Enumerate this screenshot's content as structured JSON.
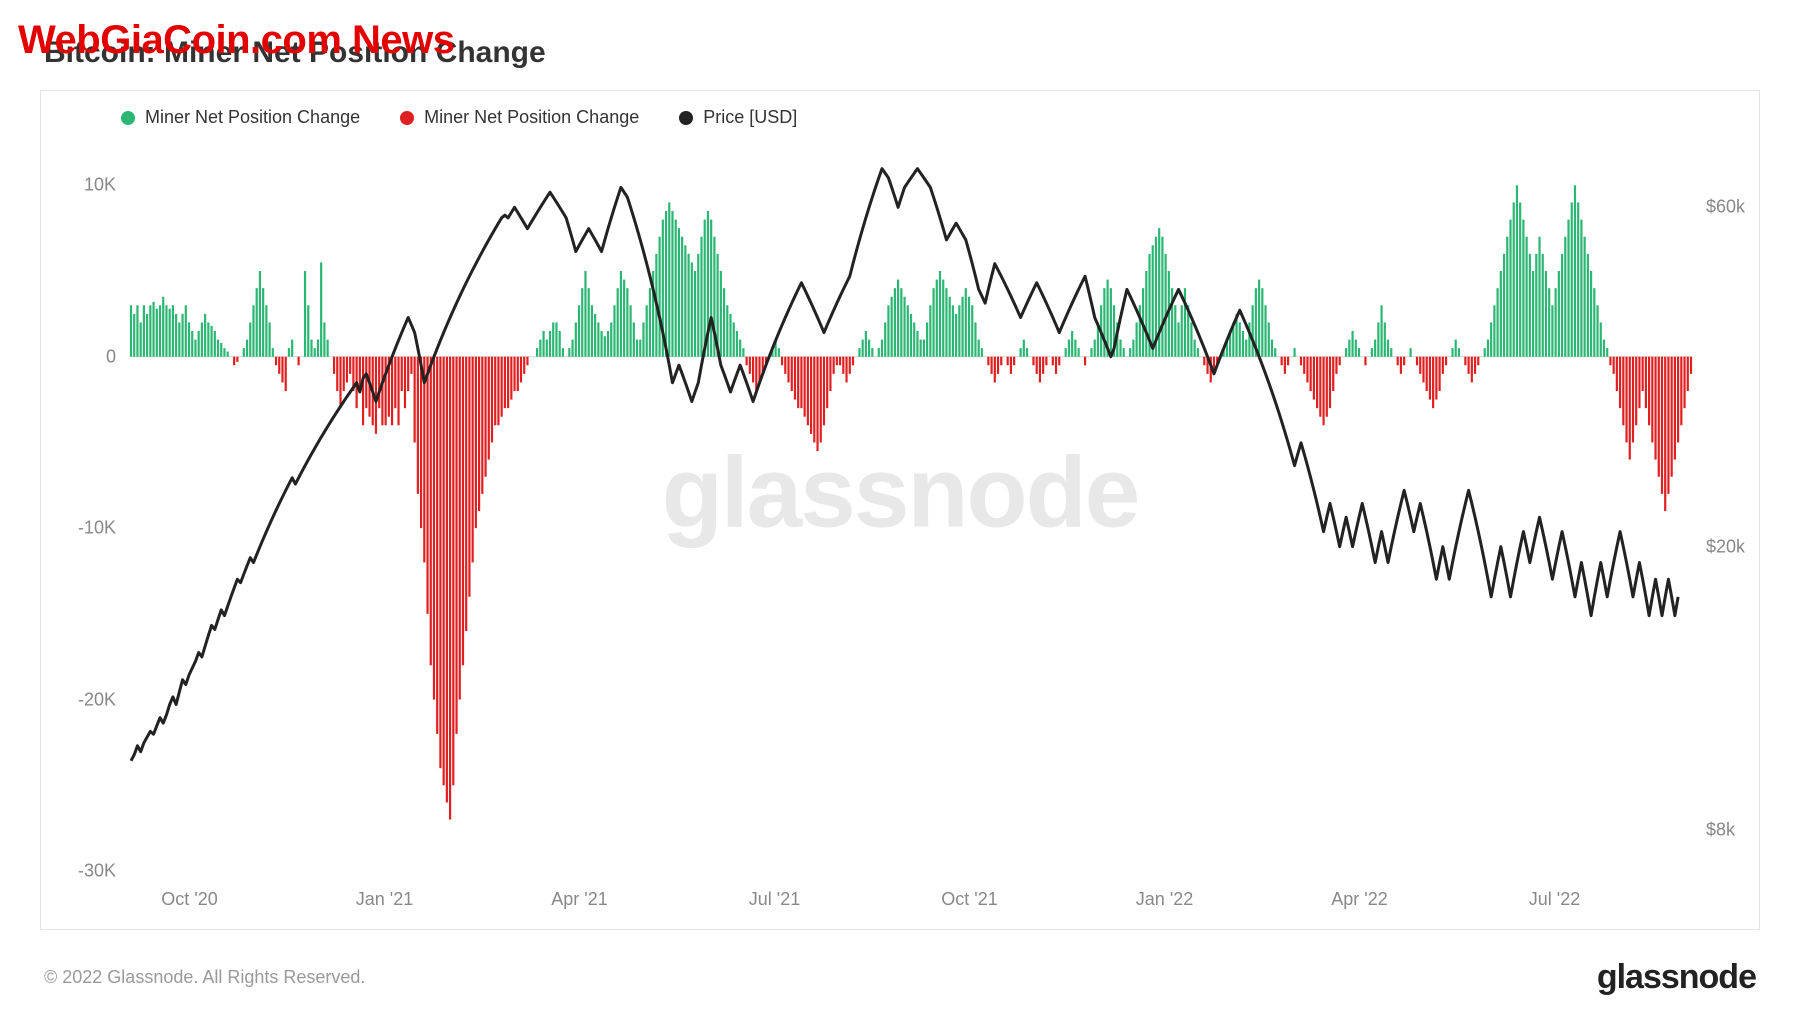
{
  "overlay_text": "WebGiaCoin.com News",
  "title": "Bitcoin: Miner Net Position Change",
  "legend": {
    "pos": "Miner Net Position Change",
    "neg": "Miner Net Position Change",
    "price": "Price [USD]",
    "pos_color": "#2bb673",
    "neg_color": "#e02020",
    "price_color": "#222222"
  },
  "watermark": "glassnode",
  "copyright": "© 2022 Glassnode. All Rights Reserved.",
  "brand": "glassnode",
  "chart": {
    "type": "combo-bar-line",
    "background_color": "#ffffff",
    "border_color": "#e5e5e5",
    "zero_line_color": "#d0d0d0",
    "left_axis": {
      "label_color": "#888888",
      "fontsize": 18,
      "ticks": [
        10,
        0,
        -10,
        -20,
        -30
      ],
      "tick_labels": [
        "10K",
        "0",
        "-10K",
        "-20K",
        "-30K"
      ],
      "ylim": [
        -30,
        12
      ]
    },
    "right_axis": {
      "label_color": "#888888",
      "fontsize": 18,
      "ticks": [
        60,
        20,
        8
      ],
      "tick_labels": [
        "$60k",
        "$20k",
        "$8k"
      ],
      "scale": "log",
      "ylim": [
        7,
        72
      ]
    },
    "x_axis": {
      "labels": [
        "Oct '20",
        "Jan '21",
        "Apr '21",
        "Jul '21",
        "Oct '21",
        "Jan '22",
        "Apr '22",
        "Jul '22"
      ],
      "label_color": "#888888",
      "fontsize": 18,
      "range": [
        0,
        730
      ]
    },
    "bars_pos_color": "#2bb673",
    "bars_neg_color": "#e02020",
    "bar_width": 2.2,
    "line_color": "#222222",
    "line_width": 3,
    "bars": [
      3,
      2.5,
      3,
      2,
      3,
      2.5,
      3,
      3.2,
      2.8,
      3,
      3.5,
      3,
      2.8,
      3,
      2.5,
      2,
      2.5,
      3,
      2,
      1.5,
      1,
      1.5,
      2,
      2.5,
      2,
      1.8,
      1.5,
      1,
      0.8,
      0.5,
      0.3,
      0,
      -0.5,
      -0.3,
      0,
      0.5,
      1,
      2,
      3,
      4,
      5,
      4,
      3,
      2,
      0.5,
      -0.5,
      -1,
      -1.5,
      -2,
      0.5,
      1,
      0,
      -0.5,
      0,
      5,
      3,
      1,
      0.5,
      1,
      5.5,
      2,
      1,
      0,
      -1,
      -2,
      -3,
      -2,
      -1.5,
      -1,
      -2,
      -3,
      -2,
      -4,
      -3,
      -3.5,
      -4,
      -4.5,
      -3,
      -4,
      -4,
      -3.5,
      -4,
      -3,
      -4,
      -2,
      -3,
      -2,
      -1,
      -5,
      -8,
      -10,
      -12,
      -15,
      -18,
      -20,
      -22,
      -24,
      -25,
      -26,
      -27,
      -25,
      -22,
      -20,
      -18,
      -16,
      -14,
      -12,
      -10,
      -9,
      -8,
      -7,
      -6,
      -5,
      -4,
      -4,
      -3.5,
      -3,
      -3,
      -2.5,
      -2,
      -2,
      -1.5,
      -1,
      -0.5,
      0,
      0,
      0.5,
      1,
      1.5,
      1,
      1.5,
      2,
      2,
      1.5,
      0.5,
      0,
      0.5,
      1,
      2,
      3,
      4,
      5,
      4,
      3,
      2.5,
      2,
      1.5,
      1.2,
      1.5,
      2,
      3,
      4,
      5,
      4.5,
      4,
      3,
      2,
      1,
      1,
      2,
      3,
      4,
      5,
      6,
      7,
      8,
      8.5,
      9,
      8.5,
      8,
      7.5,
      7,
      6.5,
      6,
      5.5,
      5,
      6,
      7,
      8,
      8.5,
      8,
      7,
      6,
      5,
      4,
      3,
      2.5,
      2,
      1.5,
      1,
      0.5,
      -0.5,
      -1,
      -1.5,
      -2,
      -1.5,
      -1,
      -0.5,
      0,
      0.5,
      1,
      0.5,
      -0.5,
      -1,
      -1.5,
      -2,
      -2.5,
      -3,
      -3,
      -3.5,
      -4,
      -4.5,
      -5,
      -5.5,
      -5,
      -4,
      -3,
      -2,
      -1,
      -0.5,
      -0.5,
      -1,
      -1.5,
      -1,
      -0.5,
      0,
      0.5,
      1,
      1.5,
      1,
      0.5,
      0,
      0.5,
      1,
      2,
      3,
      3.5,
      4,
      4.5,
      4,
      3.5,
      3,
      2.5,
      2,
      1.5,
      1,
      1,
      2,
      3,
      4,
      4.5,
      5,
      4.5,
      4,
      3.5,
      3,
      2.5,
      3,
      3.5,
      4,
      3.5,
      3,
      2,
      1,
      0.5,
      0,
      -0.5,
      -1,
      -1.5,
      -1,
      -0.5,
      0,
      -0.5,
      -1,
      -0.5,
      0,
      0.5,
      1,
      0.5,
      0,
      -0.5,
      -1,
      -1.5,
      -1,
      -0.5,
      0,
      -0.5,
      -1,
      -0.5,
      0,
      0.5,
      1,
      1.5,
      1,
      0.5,
      0,
      -0.5,
      0,
      0.5,
      1,
      2,
      3,
      4,
      4.5,
      4,
      3,
      2,
      1,
      0.5,
      0,
      0.5,
      1,
      2,
      3,
      4,
      5,
      6,
      6.5,
      7,
      7.5,
      7,
      6,
      5,
      4,
      3,
      2,
      3,
      4,
      3,
      2,
      1,
      0.5,
      0,
      -0.5,
      -1,
      -1.5,
      -1,
      -0.5,
      0,
      0.5,
      1,
      1.5,
      2,
      2.5,
      2,
      1.5,
      1,
      2,
      3,
      4,
      4.5,
      4,
      3,
      2,
      1,
      0.5,
      0,
      -0.5,
      -1,
      -0.5,
      0,
      0.5,
      0,
      -0.5,
      -1,
      -1.5,
      -2,
      -2.5,
      -3,
      -3.5,
      -4,
      -3.5,
      -3,
      -2,
      -1,
      -0.5,
      0,
      0.5,
      1,
      1.5,
      1,
      0.5,
      0,
      -0.5,
      0,
      0.5,
      1,
      2,
      3,
      2,
      1,
      0.5,
      0,
      -0.5,
      -1,
      -0.5,
      0,
      0.5,
      0,
      -0.5,
      -1,
      -1.5,
      -2,
      -2.5,
      -3,
      -2.5,
      -2,
      -1,
      -0.5,
      0,
      0.5,
      1,
      0.5,
      0,
      -0.5,
      -1,
      -1.5,
      -1,
      -0.5,
      0,
      0.5,
      1,
      2,
      3,
      4,
      5,
      6,
      7,
      8,
      9,
      10,
      9,
      8,
      7,
      6,
      5,
      6,
      7,
      6,
      5,
      4,
      3,
      4,
      5,
      6,
      7,
      8,
      9,
      10,
      9,
      8,
      7,
      6,
      5,
      4,
      3,
      2,
      1,
      0.5,
      -0.5,
      -1,
      -2,
      -3,
      -4,
      -5,
      -6,
      -5,
      -4,
      -3,
      -2,
      -3,
      -4,
      -5,
      -6,
      -7,
      -8,
      -9,
      -8,
      -7,
      -6,
      -5,
      -4,
      -3,
      -2,
      -1
    ],
    "price": [
      10,
      10.2,
      10.5,
      10.3,
      10.6,
      10.8,
      11,
      10.9,
      11.2,
      11.5,
      11.3,
      11.6,
      12,
      12.3,
      12,
      12.5,
      13,
      12.8,
      13.2,
      13.5,
      13.8,
      14.2,
      14,
      14.5,
      15,
      15.5,
      15.3,
      15.8,
      16.3,
      16,
      16.5,
      17,
      17.5,
      18,
      17.8,
      18.3,
      18.8,
      19.3,
      19,
      19.5,
      20,
      20.5,
      21,
      21.5,
      22,
      22.5,
      23,
      23.5,
      24,
      24.5,
      25,
      24.5,
      25,
      25.5,
      26,
      26.5,
      27,
      27.5,
      28,
      28.5,
      29,
      29.5,
      30,
      30.5,
      31,
      31.5,
      32,
      32.5,
      33,
      33.5,
      34,
      33,
      34.5,
      35,
      34,
      33,
      32,
      33,
      34,
      35,
      36,
      37,
      38,
      39,
      40,
      41,
      42,
      41,
      40,
      38,
      36,
      34,
      35,
      36,
      37,
      38,
      39,
      40,
      41,
      42,
      43,
      44,
      45,
      46,
      47,
      48,
      49,
      50,
      51,
      52,
      53,
      54,
      55,
      56,
      57,
      58,
      58.5,
      58,
      59,
      60,
      59,
      58,
      57,
      56,
      57,
      58,
      59,
      60,
      61,
      62,
      63,
      62,
      61,
      60,
      59,
      58,
      56,
      54,
      52,
      53,
      54,
      55,
      56,
      55,
      54,
      53,
      52,
      54,
      56,
      58,
      60,
      62,
      64,
      63,
      62,
      60,
      58,
      56,
      54,
      52,
      50,
      48,
      46,
      44,
      42,
      40,
      38,
      36,
      34,
      35,
      36,
      35,
      34,
      33,
      32,
      33,
      34,
      36,
      38,
      40,
      42,
      40,
      38,
      36,
      35,
      34,
      33,
      34,
      35,
      36,
      35,
      34,
      33,
      32,
      33,
      34,
      35,
      36,
      37,
      38,
      39,
      40,
      41,
      42,
      43,
      44,
      45,
      46,
      47,
      46,
      45,
      44,
      43,
      42,
      41,
      40,
      41,
      42,
      43,
      44,
      45,
      46,
      47,
      48,
      50,
      52,
      54,
      56,
      58,
      60,
      62,
      64,
      66,
      68,
      67,
      66,
      64,
      62,
      60,
      62,
      64,
      65,
      66,
      67,
      68,
      67,
      66,
      65,
      64,
      62,
      60,
      58,
      56,
      54,
      55,
      56,
      57,
      56,
      55,
      54,
      52,
      50,
      48,
      46,
      45,
      44,
      46,
      48,
      50,
      49,
      48,
      47,
      46,
      45,
      44,
      43,
      42,
      43,
      44,
      45,
      46,
      47,
      46,
      45,
      44,
      43,
      42,
      41,
      40,
      41,
      42,
      43,
      44,
      45,
      46,
      47,
      48,
      46,
      44,
      42,
      41,
      40,
      39,
      38,
      37,
      38,
      40,
      42,
      44,
      46,
      45,
      44,
      43,
      42,
      41,
      40,
      39,
      38,
      39,
      40,
      41,
      42,
      43,
      44,
      45,
      46,
      45,
      44,
      43,
      42,
      41,
      40,
      39,
      38,
      37,
      36,
      35,
      36,
      37,
      38,
      39,
      40,
      41,
      42,
      43,
      42,
      41,
      40,
      39,
      38,
      37,
      36,
      35,
      34,
      33,
      32,
      31,
      30,
      29,
      28,
      27,
      26,
      27,
      28,
      27,
      26,
      25,
      24,
      23,
      22,
      21,
      22,
      23,
      22,
      21,
      20,
      21,
      22,
      21,
      20,
      21,
      22,
      23,
      22,
      21,
      20,
      19,
      20,
      21,
      20,
      19,
      20,
      21,
      22,
      23,
      24,
      23,
      22,
      21,
      22,
      23,
      22,
      21,
      20,
      19,
      18,
      19,
      20,
      19,
      18,
      19,
      20,
      21,
      22,
      23,
      24,
      23,
      22,
      21,
      20,
      19,
      18,
      17,
      18,
      19,
      20,
      19,
      18,
      17,
      18,
      19,
      20,
      21,
      20,
      19,
      20,
      21,
      22,
      21,
      20,
      19,
      18,
      19,
      20,
      21,
      20,
      19,
      18,
      17,
      18,
      19,
      18,
      17,
      16,
      17,
      18,
      19,
      18,
      17,
      18,
      19,
      20,
      21,
      20,
      19,
      18,
      17,
      18,
      19,
      18,
      17,
      16,
      17,
      18,
      17,
      16,
      17,
      18,
      17,
      16,
      17
    ]
  }
}
